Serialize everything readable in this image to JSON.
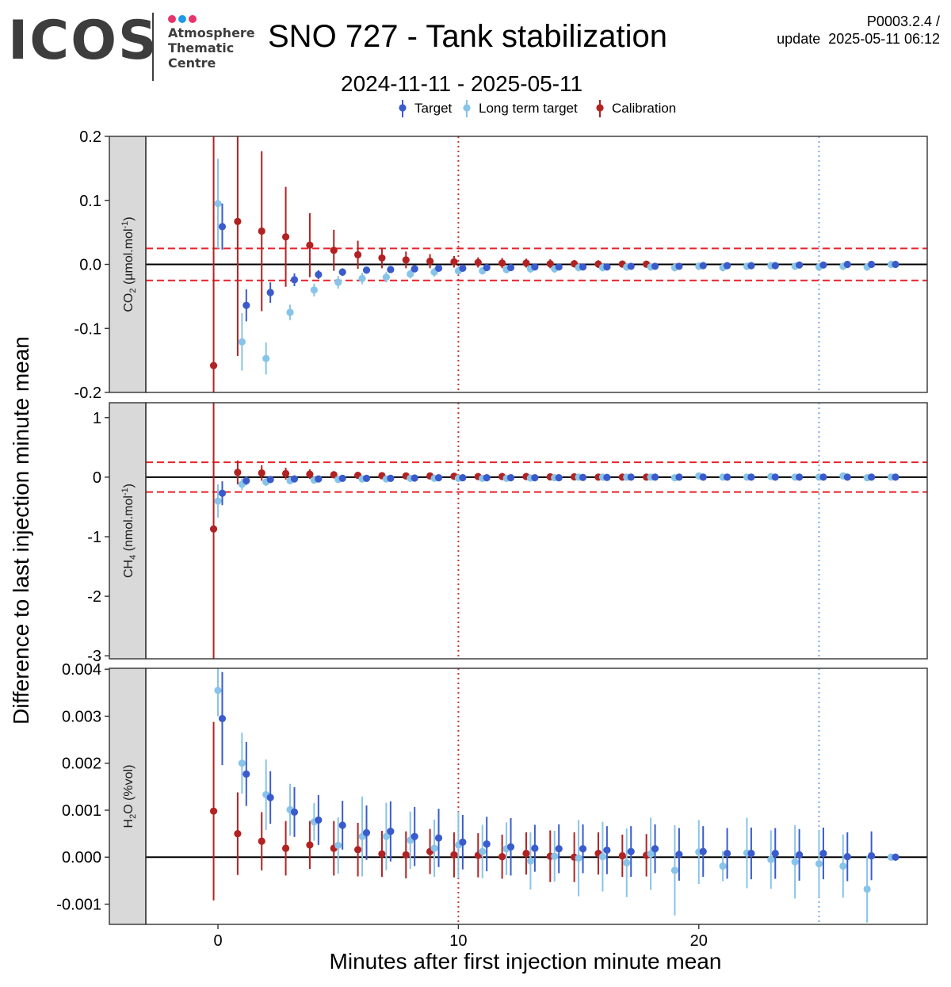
{
  "header": {
    "logo_word": "ICOS",
    "logo_lines": [
      "Atmosphere",
      "Thematic",
      "Centre"
    ],
    "title": "SNO 727 - Tank stabilization",
    "subtitle": "2024-11-11 - 2025-05-11",
    "version": "P0003.2.4 /",
    "update": "update  2025-05-11 06:12"
  },
  "colors": {
    "logo_text": "#3d3d3d",
    "logo_dots": [
      "#e8336d",
      "#1e9be6",
      "#e8336d"
    ],
    "target": "#3b5bcc",
    "long_term_target": "#87c4ea",
    "calibration": "#b22222",
    "threshold": "#e8222a",
    "strip": "#d9d9d9"
  },
  "chart_data": {
    "type": "scatter",
    "x_label": "Minutes after first injection minute mean",
    "y_label": "Difference to last injection minute mean",
    "x_range": [
      -3,
      29.5
    ],
    "x_ticks": [
      "0",
      "10",
      "20"
    ],
    "x_tick_values": [
      0,
      10,
      20
    ],
    "legend": {
      "placement": "top-center",
      "entries": [
        "Target",
        "Long term target",
        "Calibration"
      ]
    },
    "vlines": [
      {
        "x": 10,
        "color": "#cc3333",
        "style": "dotted"
      },
      {
        "x": 25,
        "color": "#7aa9e8",
        "style": "dotted"
      }
    ],
    "panels": [
      {
        "strip_main": "CO",
        "strip_sub": "2",
        "strip_unit": " (µmol.mol",
        "strip_sup": "-1",
        "strip_close": ")",
        "ylim": [
          -0.2,
          0.2
        ],
        "y_tick_labels": [
          "-0.2",
          "-0.1",
          "0.0",
          "0.1",
          "0.2"
        ],
        "y_tick_values": [
          -0.2,
          -0.1,
          0.0,
          0.1,
          0.2
        ],
        "threshold": 0.025,
        "series": [
          {
            "name": "Calibration",
            "x": [
              0,
              1,
              2,
              3,
              4,
              5,
              6,
              7,
              8,
              9,
              10,
              11,
              12,
              13,
              14,
              15,
              16,
              17,
              18
            ],
            "y": [
              -0.158,
              0.067,
              0.052,
              0.043,
              0.03,
              0.022,
              0.015,
              0.01,
              0.007,
              0.005,
              0.004,
              0.003,
              0.002,
              0.002,
              0.001,
              0.001,
              0.0005,
              0.0005,
              0.0003
            ],
            "err": [
              0.4,
              0.21,
              0.125,
              0.078,
              0.05,
              0.032,
              0.022,
              0.016,
              0.013,
              0.011,
              0.009,
              0.008,
              0.008,
              0.007,
              0.007,
              0.006,
              0.006,
              0.005,
              0.005
            ]
          },
          {
            "name": "Long term target",
            "x": [
              0,
              1,
              2,
              3,
              4,
              5,
              6,
              7,
              8,
              9,
              10,
              11,
              12,
              13,
              14,
              15,
              16,
              17,
              18,
              19,
              20,
              21,
              22,
              23,
              24,
              25,
              26,
              27,
              28
            ],
            "y": [
              0.095,
              -0.121,
              -0.147,
              -0.075,
              -0.04,
              -0.028,
              -0.022,
              -0.02,
              -0.015,
              -0.012,
              -0.01,
              -0.01,
              -0.008,
              -0.007,
              -0.007,
              -0.005,
              -0.005,
              -0.004,
              -0.004,
              -0.005,
              -0.003,
              -0.005,
              -0.003,
              -0.002,
              -0.003,
              -0.004,
              -0.003,
              -0.004,
              0.0
            ],
            "err": [
              0.07,
              0.045,
              0.025,
              0.012,
              0.01,
              0.01,
              0.009,
              0.008,
              0.007,
              0.007,
              0.006,
              0.006,
              0.006,
              0.006,
              0.006,
              0.006,
              0.006,
              0.006,
              0.006,
              0.006,
              0.006,
              0.006,
              0.006,
              0.006,
              0.006,
              0.006,
              0.006,
              0.006,
              0.006
            ]
          },
          {
            "name": "Target",
            "x": [
              0,
              1,
              2,
              3,
              4,
              5,
              6,
              7,
              8,
              9,
              10,
              11,
              12,
              13,
              14,
              15,
              16,
              17,
              18,
              19,
              20,
              21,
              22,
              23,
              24,
              25,
              26,
              27,
              28
            ],
            "y": [
              0.059,
              -0.064,
              -0.044,
              -0.024,
              -0.016,
              -0.012,
              -0.009,
              -0.008,
              -0.007,
              -0.006,
              -0.006,
              -0.005,
              -0.005,
              -0.004,
              -0.004,
              -0.004,
              -0.004,
              -0.003,
              -0.003,
              -0.003,
              -0.002,
              -0.002,
              -0.002,
              -0.002,
              -0.001,
              -0.001,
              0.0,
              0.0,
              0.0
            ],
            "err": [
              0.036,
              0.025,
              0.016,
              0.01,
              0.007,
              0.006,
              0.005,
              0.005,
              0.004,
              0.004,
              0.004,
              0.004,
              0.004,
              0.004,
              0.004,
              0.004,
              0.004,
              0.004,
              0.004,
              0.004,
              0.004,
              0.004,
              0.004,
              0.004,
              0.004,
              0.004,
              0.004,
              0.004,
              0.004
            ]
          }
        ]
      },
      {
        "strip_main": "CH",
        "strip_sub": "4",
        "strip_unit": " (nmol.mol",
        "strip_sup": "-1",
        "strip_close": ")",
        "ylim": [
          -3.05,
          1.25
        ],
        "y_tick_labels": [
          "-3",
          "-2",
          "-1",
          "0",
          "1"
        ],
        "y_tick_values": [
          -3,
          -2,
          -1,
          0,
          1
        ],
        "threshold": 0.25,
        "series": [
          {
            "name": "Calibration",
            "x": [
              0,
              1,
              2,
              3,
              4,
              5,
              6,
              7,
              8,
              9,
              10,
              11,
              12,
              13,
              14,
              15,
              16,
              17,
              18
            ],
            "y": [
              -0.87,
              0.08,
              0.07,
              0.06,
              0.05,
              0.04,
              0.03,
              0.025,
              0.02,
              0.02,
              0.015,
              0.01,
              0.01,
              0.01,
              0.005,
              0.005,
              0.0,
              0.0,
              0.0
            ],
            "err": [
              2.4,
              0.2,
              0.13,
              0.1,
              0.08,
              0.06,
              0.05,
              0.05,
              0.04,
              0.04,
              0.04,
              0.04,
              0.04,
              0.04,
              0.04,
              0.04,
              0.04,
              0.04,
              0.04
            ]
          },
          {
            "name": "Long term target",
            "x": [
              0,
              1,
              2,
              3,
              4,
              5,
              6,
              7,
              8,
              9,
              10,
              11,
              12,
              13,
              14,
              15,
              16,
              17,
              18,
              19,
              20,
              21,
              22,
              23,
              24,
              25,
              26,
              27,
              28
            ],
            "y": [
              -0.4,
              -0.12,
              -0.08,
              -0.06,
              -0.05,
              -0.04,
              -0.03,
              -0.03,
              -0.02,
              -0.02,
              -0.02,
              -0.02,
              -0.02,
              -0.015,
              -0.01,
              0.0,
              0.0,
              0.0,
              0.0,
              -0.01,
              0.02,
              0.0,
              0.0,
              0.01,
              0.0,
              0.0,
              0.02,
              -0.01,
              0.0
            ],
            "err": [
              0.28,
              0.1,
              0.07,
              0.06,
              0.05,
              0.05,
              0.05,
              0.05,
              0.05,
              0.05,
              0.05,
              0.05,
              0.05,
              0.05,
              0.05,
              0.05,
              0.05,
              0.05,
              0.05,
              0.05,
              0.05,
              0.05,
              0.05,
              0.05,
              0.05,
              0.05,
              0.05,
              0.05,
              0.05
            ]
          },
          {
            "name": "Target",
            "x": [
              0,
              1,
              2,
              3,
              4,
              5,
              6,
              7,
              8,
              9,
              10,
              11,
              12,
              13,
              14,
              15,
              16,
              17,
              18,
              19,
              20,
              21,
              22,
              23,
              24,
              25,
              26,
              27,
              28
            ],
            "y": [
              -0.27,
              -0.06,
              -0.04,
              -0.03,
              -0.03,
              -0.02,
              -0.02,
              -0.02,
              -0.015,
              -0.01,
              -0.01,
              -0.01,
              -0.01,
              -0.01,
              -0.01,
              -0.005,
              -0.005,
              0.0,
              0.0,
              0.0,
              0.0,
              0.0,
              0.0,
              0.0,
              0.0,
              0.0,
              0.0,
              0.0,
              0.0
            ],
            "err": [
              0.2,
              0.07,
              0.05,
              0.04,
              0.04,
              0.04,
              0.04,
              0.04,
              0.04,
              0.04,
              0.04,
              0.04,
              0.04,
              0.04,
              0.04,
              0.04,
              0.04,
              0.04,
              0.04,
              0.04,
              0.04,
              0.04,
              0.04,
              0.04,
              0.04,
              0.04,
              0.04,
              0.04,
              0.04
            ]
          }
        ]
      },
      {
        "strip_main": "H",
        "strip_sub": "2",
        "strip_unit": "O (%vol)",
        "strip_sup": "",
        "strip_close": "",
        "ylim": [
          -0.00143,
          0.00402
        ],
        "y_tick_labels": [
          "-0.001",
          "0.000",
          "0.001",
          "0.002",
          "0.003",
          "0.004"
        ],
        "y_tick_values": [
          -0.001,
          0.0,
          0.001,
          0.002,
          0.003,
          0.004
        ],
        "threshold": null,
        "series": [
          {
            "name": "Calibration",
            "x": [
              0,
              1,
              2,
              3,
              4,
              5,
              6,
              7,
              8,
              9,
              10,
              11,
              12,
              13,
              14,
              15,
              16,
              17,
              18
            ],
            "y": [
              0.00098,
              0.0005,
              0.00034,
              0.00019,
              0.00026,
              0.00019,
              0.00016,
              7e-05,
              5e-05,
              0.00012,
              5e-05,
              4e-05,
              1e-05,
              8e-05,
              2e-05,
              0.0,
              8e-05,
              3e-05,
              4e-05
            ],
            "err": [
              0.0019,
              0.00088,
              0.00062,
              0.00058,
              0.00051,
              0.00058,
              0.00057,
              0.00049,
              0.0005,
              0.00048,
              0.00048,
              0.00047,
              0.00047,
              0.00045,
              0.00055,
              0.00053,
              0.00045,
              0.00045,
              0.00045
            ]
          },
          {
            "name": "Long term target",
            "x": [
              0,
              1,
              2,
              3,
              4,
              5,
              6,
              7,
              8,
              9,
              10,
              11,
              12,
              13,
              14,
              15,
              16,
              17,
              18,
              19,
              20,
              21,
              22,
              23,
              24,
              25,
              26,
              27,
              28
            ],
            "y": [
              0.00355,
              0.002,
              0.00133,
              0.00101,
              0.00075,
              0.00025,
              0.00044,
              0.00044,
              0.00036,
              0.00019,
              0.00026,
              0.00012,
              0.00018,
              -8e-05,
              2e-05,
              -2e-05,
              1e-05,
              -0.00012,
              7e-05,
              -0.00028,
              0.00011,
              -0.00019,
              9e-05,
              -5e-05,
              -0.0001,
              -0.00014,
              -0.00019,
              -0.00068,
              0.0
            ],
            "err": [
              0.00055,
              0.00065,
              0.00075,
              0.00055,
              0.0004,
              0.0006,
              0.00085,
              0.00072,
              0.00061,
              0.00061,
              0.00071,
              0.00057,
              0.00056,
              0.00061,
              0.00054,
              0.00081,
              0.00074,
              0.00073,
              0.00077,
              0.00096,
              0.00068,
              0.00032,
              0.00075,
              0.00062,
              0.00078,
              0.00071,
              0.00067,
              0.00071,
              5e-05
            ]
          },
          {
            "name": "Target",
            "x": [
              0,
              1,
              2,
              3,
              4,
              5,
              6,
              7,
              8,
              9,
              10,
              11,
              12,
              13,
              14,
              15,
              16,
              17,
              18,
              19,
              20,
              21,
              22,
              23,
              24,
              25,
              26,
              27,
              28
            ],
            "y": [
              0.00295,
              0.00177,
              0.00127,
              0.00096,
              0.00079,
              0.00068,
              0.00052,
              0.00055,
              0.00044,
              0.00041,
              0.00032,
              0.00028,
              0.00022,
              0.00019,
              0.00018,
              0.00018,
              0.00015,
              0.00012,
              0.00018,
              6e-05,
              0.00012,
              8e-05,
              8e-05,
              8e-05,
              5e-05,
              8e-05,
              1e-05,
              3e-05,
              0.0
            ],
            "err": [
              0.00099,
              0.00068,
              0.00056,
              0.00053,
              0.00053,
              0.00052,
              0.00058,
              0.00064,
              0.00063,
              0.00062,
              0.00058,
              0.00058,
              0.00061,
              0.0005,
              0.00052,
              0.00052,
              0.00051,
              0.00054,
              0.00052,
              0.00056,
              0.00054,
              0.00054,
              0.00055,
              0.00054,
              0.00055,
              0.00055,
              0.00052,
              0.00052,
              2e-05
            ]
          }
        ]
      }
    ]
  }
}
